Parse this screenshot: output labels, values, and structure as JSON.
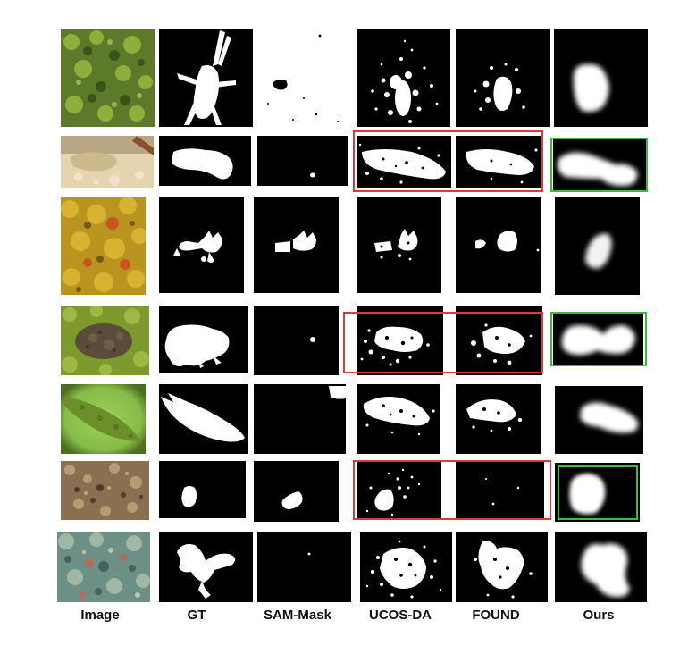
{
  "figure": {
    "column_labels": [
      "Image",
      "GT",
      "SAM-Mask",
      "UCOS-DA",
      "FOUND",
      "Ours"
    ],
    "rows": [
      {
        "scene": "moss-camouflaged-insect"
      },
      {
        "scene": "sand-flatfish"
      },
      {
        "scene": "autumn-leaves-animal"
      },
      {
        "scene": "moss-frog"
      },
      {
        "scene": "green-leaf-insect"
      },
      {
        "scene": "rock-lichen-creature"
      },
      {
        "scene": "reef-octopus"
      }
    ],
    "highlight_colors": {
      "red": "#d93b3b",
      "green": "#3dbb3d"
    }
  }
}
